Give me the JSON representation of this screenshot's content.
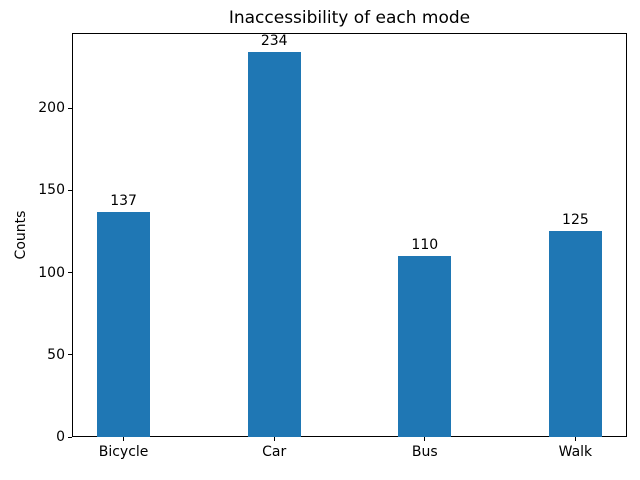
{
  "chart_data": {
    "type": "bar",
    "title": "Inaccessibility of each mode",
    "categories": [
      "Bicycle",
      "Car",
      "Bus",
      "Walk"
    ],
    "values": [
      137,
      234,
      110,
      125
    ],
    "xlabel": "",
    "ylabel": "Counts",
    "yticks": [
      0,
      50,
      100,
      150,
      200
    ],
    "ylim": [
      0,
      245.7
    ],
    "bar_color": "#1f77b4",
    "grid": false,
    "legend_position": "none",
    "bar_width_frac": 0.35,
    "value_labels_shown": true
  }
}
